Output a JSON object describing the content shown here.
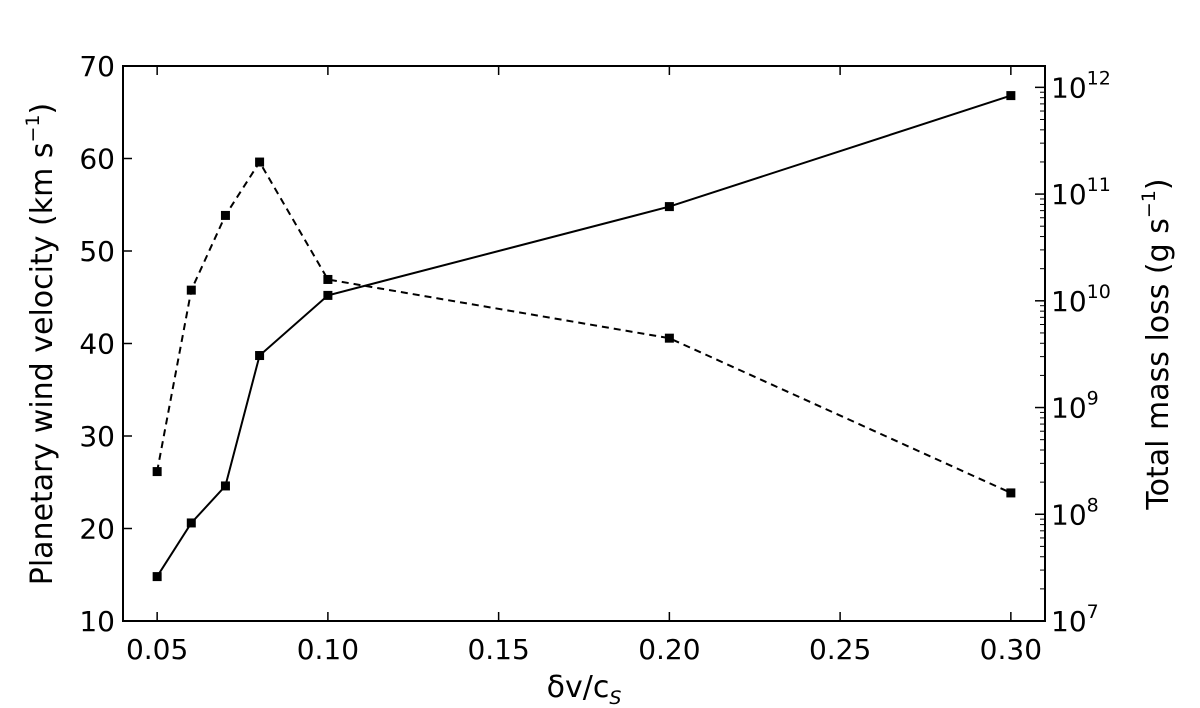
{
  "chart_data": {
    "type": "line",
    "xlabel": "δv/c",
    "xlabel_subscript": "S",
    "ylabel": "Planetary wind velocity (km s",
    "ylabel_exponent": "−1",
    "ylabel_close": ")",
    "y2label": "Total mass loss (g s",
    "y2label_exponent": "−1",
    "y2label_close": ")",
    "xlim": [
      0.04,
      0.31
    ],
    "ylim": [
      10,
      70
    ],
    "y2lim_log10": [
      7,
      12.2
    ],
    "y2scale": "log",
    "x_ticks": [
      0.05,
      0.1,
      0.15,
      0.2,
      0.25,
      0.3
    ],
    "x_tick_labels": [
      "0.05",
      "0.10",
      "0.15",
      "0.20",
      "0.25",
      "0.30"
    ],
    "y_ticks": [
      10,
      20,
      30,
      40,
      50,
      60,
      70
    ],
    "y_tick_labels": [
      "10",
      "20",
      "30",
      "40",
      "50",
      "60",
      "70"
    ],
    "y2_ticks_log10": [
      7,
      8,
      9,
      10,
      11,
      12
    ],
    "y2_tick_base": "10",
    "y2_tick_exponents": [
      "7",
      "8",
      "9",
      "10",
      "11",
      "12"
    ],
    "grid": false,
    "legend": "none",
    "series": [
      {
        "axis": "left",
        "style": "solid",
        "marker": "square",
        "color": "#000000",
        "x": [
          0.05,
          0.06,
          0.07,
          0.08,
          0.1,
          0.2,
          0.3
        ],
        "y": [
          14.8,
          20.6,
          24.6,
          38.7,
          45.2,
          54.8,
          66.8
        ]
      },
      {
        "axis": "right",
        "style": "dashed",
        "marker": "square",
        "color": "#000000",
        "x": [
          0.05,
          0.06,
          0.07,
          0.08,
          0.1,
          0.2,
          0.3
        ],
        "y_log10": [
          8.4,
          10.1,
          10.8,
          11.3,
          10.2,
          9.65,
          8.2
        ]
      }
    ]
  }
}
